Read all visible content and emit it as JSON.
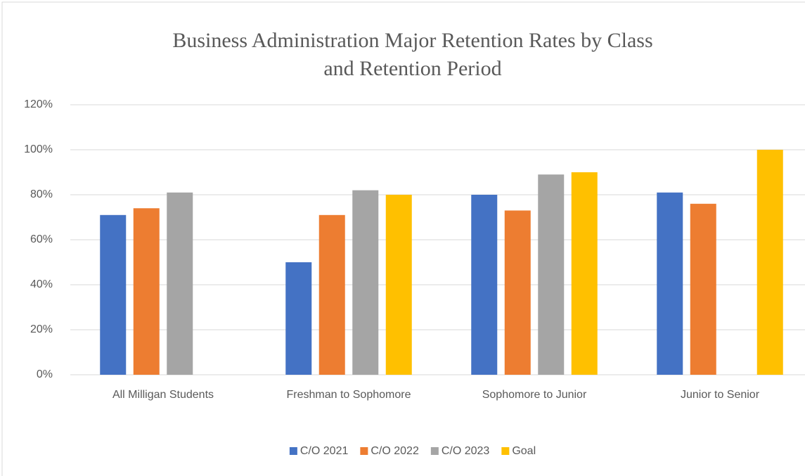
{
  "chart_data": {
    "type": "bar",
    "title": [
      "Business Administration Major Retention Rates by Class",
      "and Retention Period"
    ],
    "categories": [
      "All Milligan Students",
      "Freshman to Sophomore",
      "Sophomore to Junior",
      "Junior to Senior"
    ],
    "series": [
      {
        "name": "C/O 2021",
        "color": "#4472c4",
        "values": [
          71,
          50,
          80,
          81
        ]
      },
      {
        "name": "C/O 2022",
        "color": "#ed7d31",
        "values": [
          74,
          71,
          73,
          76
        ]
      },
      {
        "name": "C/O 2023",
        "color": "#a5a5a5",
        "values": [
          81,
          82,
          89,
          null
        ]
      },
      {
        "name": "Goal",
        "color": "#ffc000",
        "values": [
          null,
          80,
          90,
          100
        ]
      }
    ],
    "ylim": [
      0,
      120
    ],
    "yticks": [
      {
        "value": 0,
        "label": "0%"
      },
      {
        "value": 20,
        "label": "20%"
      },
      {
        "value": 40,
        "label": "40%"
      },
      {
        "value": 60,
        "label": "60%"
      },
      {
        "value": 80,
        "label": "80%"
      },
      {
        "value": 100,
        "label": "100%"
      },
      {
        "value": 120,
        "label": "120%"
      }
    ],
    "grid": true,
    "legend": "bottom"
  }
}
